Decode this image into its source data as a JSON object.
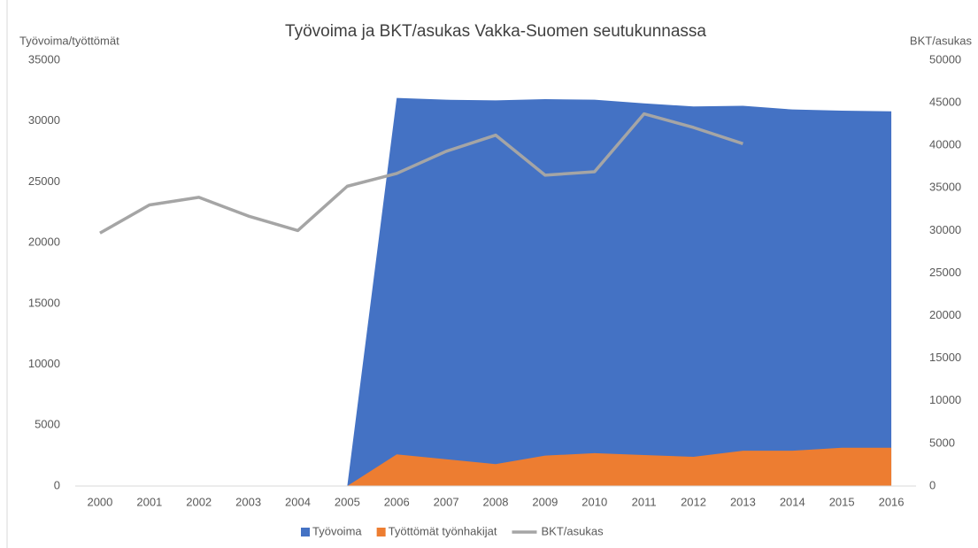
{
  "chart_data": {
    "type": "area",
    "title": "Työvoima ja BKT/asukas Vakka-Suomen seutukunnassa",
    "y_label": "Työvoima/työttömät",
    "y2_label": "BKT/asukas",
    "categories": [
      "2000",
      "2001",
      "2002",
      "2003",
      "2004",
      "2005",
      "2006",
      "2007",
      "2008",
      "2009",
      "2010",
      "2011",
      "2012",
      "2013",
      "2014",
      "2015",
      "2016"
    ],
    "series": [
      {
        "name": "Työvoima",
        "type": "area",
        "color": "#4472c4",
        "values": [
          0,
          0,
          0,
          0,
          0,
          0,
          31900,
          31750,
          31700,
          31800,
          31750,
          31450,
          31200,
          31250,
          30950,
          30850,
          30800
        ]
      },
      {
        "name": "Työttömät työnhakijat",
        "type": "area",
        "color": "#ed7d31",
        "values": [
          0,
          0,
          0,
          0,
          0,
          0,
          2600,
          2200,
          1800,
          2500,
          2700,
          2550,
          2400,
          2900,
          2900,
          3150,
          3150
        ]
      },
      {
        "name": "BKT/asukas",
        "type": "line",
        "axis": "y2",
        "color": "#a5a5a5",
        "values": [
          29700,
          33000,
          33900,
          31700,
          30000,
          35200,
          36700,
          39300,
          41200,
          36500,
          36900,
          43700,
          42100,
          40200,
          null,
          null,
          null
        ]
      }
    ],
    "ylim": [
      0,
      35000
    ],
    "yticks": [
      0,
      5000,
      10000,
      15000,
      20000,
      25000,
      30000,
      35000
    ],
    "y2lim": [
      0,
      50000
    ],
    "y2ticks": [
      0,
      5000,
      10000,
      15000,
      20000,
      25000,
      30000,
      35000,
      40000,
      45000,
      50000
    ],
    "grid": false,
    "legend": "bottom"
  }
}
